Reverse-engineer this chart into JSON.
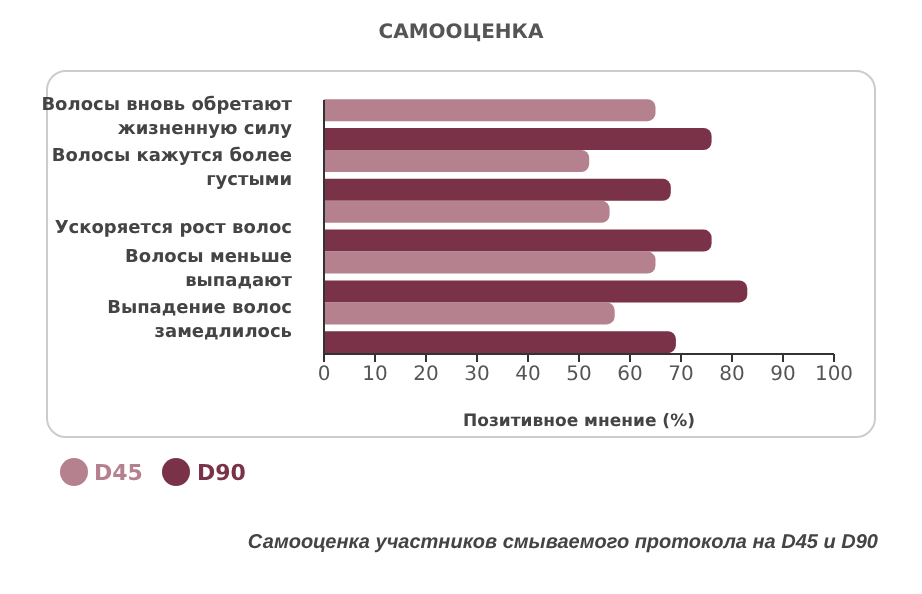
{
  "chart_data": {
    "type": "bar",
    "orientation": "horizontal",
    "title": "САМООЦЕНКА",
    "xlabel": "Позитивное мнение (%)",
    "categories": [
      "Волосы вновь обретают жизненную силу",
      "Волосы кажутся более густыми",
      "Ускоряется рост волос",
      "Волосы меньше выпадают",
      "Выпадение волос замедлилось"
    ],
    "series": [
      {
        "name": "D45",
        "color": "#b5818f",
        "values": [
          65,
          52,
          56,
          65,
          57
        ]
      },
      {
        "name": "D90",
        "color": "#7a3248",
        "values": [
          76,
          68,
          76,
          83,
          69
        ]
      }
    ],
    "xlim": [
      0,
      100
    ],
    "xticks": [
      0,
      10,
      20,
      30,
      40,
      50,
      60,
      70,
      80,
      90,
      100
    ],
    "grid": false,
    "legend": "bottom left",
    "annotations": [
      "Самооценка участников смываемого протокола на D45 и D90"
    ]
  }
}
